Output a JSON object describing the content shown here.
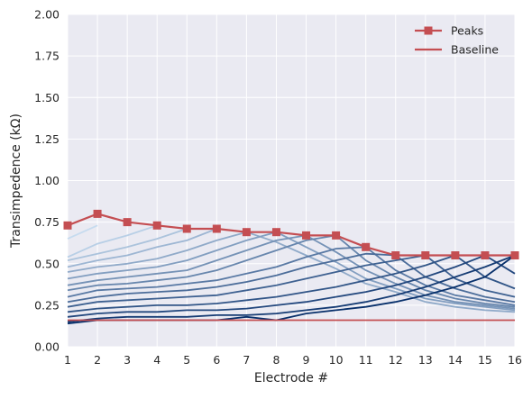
{
  "chart_data": {
    "type": "line",
    "xlabel": "Electrode #",
    "ylabel": "Transimpedence (kΩ)",
    "xlim": [
      1,
      16
    ],
    "ylim": [
      0,
      2
    ],
    "xticks": [
      "1",
      "2",
      "3",
      "4",
      "5",
      "6",
      "7",
      "8",
      "9",
      "10",
      "11",
      "12",
      "13",
      "14",
      "15",
      "16"
    ],
    "yticks": [
      "0.00",
      "0.25",
      "0.50",
      "0.75",
      "1.00",
      "1.25",
      "1.50",
      "1.75",
      "2.00"
    ],
    "grid": true,
    "legend_position": "top-right",
    "colors": {
      "background": "#eaeaf2",
      "grid": "#ffffff",
      "peaks": "#c44e52",
      "baseline": "#c44e52",
      "family_light": "#c6dbef",
      "family_dark": "#08306b"
    },
    "x": [
      1,
      2,
      3,
      4,
      5,
      6,
      7,
      8,
      9,
      10,
      11,
      12,
      13,
      14,
      15,
      16
    ],
    "peaks": {
      "name": "Peaks",
      "values": [
        0.73,
        0.8,
        0.75,
        0.73,
        0.71,
        0.71,
        0.69,
        0.69,
        0.67,
        0.67,
        0.6,
        0.55,
        0.55,
        0.55,
        0.55,
        0.55
      ]
    },
    "baseline": {
      "name": "Baseline",
      "value": 0.16
    },
    "family_series": [
      {
        "values": [
          0.65,
          0.73,
          null,
          null,
          null,
          null,
          null,
          null,
          null,
          null,
          null,
          null,
          null,
          null,
          null,
          null
        ]
      },
      {
        "values": [
          0.54,
          0.62,
          0.67,
          0.73,
          null,
          null,
          null,
          null,
          null,
          null,
          null,
          null,
          null,
          null,
          null,
          null
        ]
      },
      {
        "values": [
          0.52,
          0.56,
          0.6,
          0.65,
          0.71,
          null,
          null,
          null,
          null,
          null,
          null,
          null,
          null,
          null,
          null,
          null
        ]
      },
      {
        "values": [
          0.48,
          0.52,
          0.55,
          0.6,
          0.64,
          0.71,
          null,
          null,
          null,
          null,
          null,
          null,
          null,
          null,
          null,
          null
        ]
      },
      {
        "values": [
          0.45,
          0.48,
          0.5,
          0.53,
          0.58,
          0.64,
          0.69,
          0.63,
          0.55,
          0.47,
          0.38,
          0.33,
          0.27,
          0.24,
          0.22,
          0.21
        ]
      },
      {
        "values": [
          0.41,
          0.44,
          0.46,
          0.48,
          0.52,
          0.58,
          0.64,
          0.69,
          0.6,
          0.51,
          0.41,
          0.35,
          0.29,
          0.26,
          0.24,
          0.22
        ]
      },
      {
        "values": [
          0.37,
          0.4,
          0.42,
          0.44,
          0.46,
          0.52,
          0.58,
          0.64,
          0.67,
          0.57,
          0.46,
          0.38,
          0.31,
          0.27,
          0.25,
          0.23
        ]
      },
      {
        "values": [
          0.34,
          0.37,
          0.38,
          0.4,
          0.42,
          0.46,
          0.52,
          0.58,
          0.64,
          0.67,
          0.52,
          0.42,
          0.34,
          0.29,
          0.26,
          0.24
        ]
      },
      {
        "values": [
          0.3,
          0.34,
          0.35,
          0.36,
          0.38,
          0.4,
          0.44,
          0.48,
          0.54,
          0.59,
          0.6,
          0.46,
          0.37,
          0.31,
          0.28,
          0.25
        ]
      },
      {
        "values": [
          0.27,
          0.3,
          0.32,
          0.33,
          0.34,
          0.36,
          0.39,
          0.43,
          0.48,
          0.52,
          0.56,
          0.55,
          0.42,
          0.35,
          0.3,
          0.27
        ]
      },
      {
        "values": [
          0.24,
          0.27,
          0.28,
          0.29,
          0.3,
          0.31,
          0.34,
          0.37,
          0.41,
          0.45,
          0.49,
          0.52,
          0.55,
          0.41,
          0.34,
          0.3
        ]
      },
      {
        "values": [
          0.21,
          0.23,
          0.24,
          0.25,
          0.25,
          0.26,
          0.28,
          0.3,
          0.33,
          0.36,
          0.4,
          0.44,
          0.49,
          0.55,
          0.42,
          0.35
        ]
      },
      {
        "values": [
          0.18,
          0.2,
          0.21,
          0.21,
          0.22,
          0.22,
          0.23,
          0.25,
          0.27,
          0.3,
          0.33,
          0.37,
          0.42,
          0.48,
          0.55,
          0.44
        ]
      },
      {
        "values": [
          0.15,
          0.17,
          0.18,
          0.18,
          0.18,
          0.19,
          0.19,
          0.2,
          0.22,
          0.24,
          0.27,
          0.31,
          0.36,
          0.42,
          0.48,
          0.55
        ]
      },
      {
        "values": [
          0.14,
          0.16,
          0.16,
          0.16,
          0.16,
          0.16,
          0.18,
          0.16,
          0.2,
          0.22,
          0.24,
          0.27,
          0.31,
          0.36,
          0.42,
          0.55
        ]
      }
    ]
  }
}
